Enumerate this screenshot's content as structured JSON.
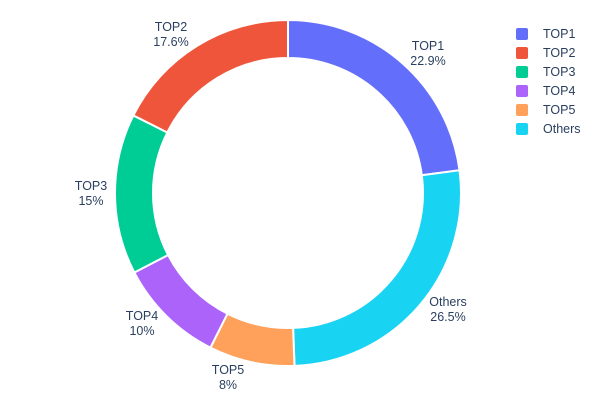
{
  "chart_data": {
    "type": "pie",
    "title": "",
    "hole": 0.78,
    "labels": [
      "TOP1",
      "TOP2",
      "TOP3",
      "TOP4",
      "TOP5",
      "Others"
    ],
    "values": [
      22.9,
      17.6,
      15,
      10,
      8,
      26.5
    ],
    "display_percents": [
      "22.9%",
      "17.6%",
      "15%",
      "10%",
      "8%",
      "26.5%"
    ],
    "colors": [
      "#636efa",
      "#ef553b",
      "#00cc96",
      "#ab63fa",
      "#ffa15a",
      "#19d3f3"
    ],
    "slice_order_clockwise_from_top": [
      0,
      5,
      4,
      3,
      2,
      1
    ],
    "slice_border_color": "#ffffff",
    "text_color": "#2a3f5f",
    "legend": {
      "position": "top-right",
      "entries": [
        "TOP1",
        "TOP2",
        "TOP3",
        "TOP4",
        "TOP5",
        "Others"
      ]
    }
  }
}
